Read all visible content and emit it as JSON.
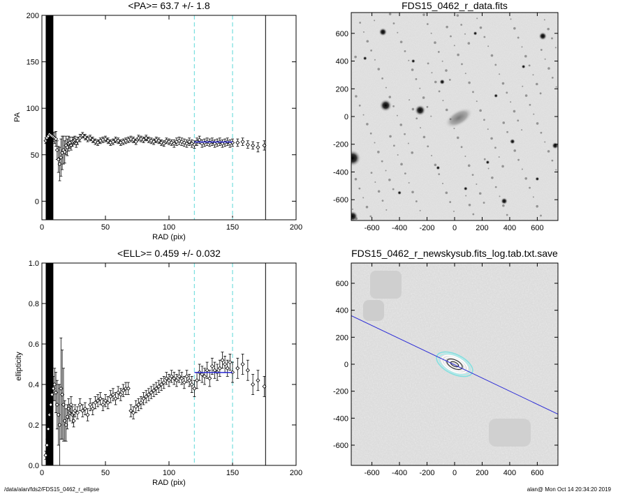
{
  "footer": {
    "left": "/data/alan/fds2/FDS15_0462_r_ellipse",
    "right": "alan@  Mon Oct 14 20:34:20 2019"
  },
  "colors": {
    "axis": "#000000",
    "data": "#000000",
    "fit_line": "#2b2bd6",
    "cyan_dash": "#7fe0e0",
    "image_bg": "#dcdcdc",
    "residual_bg": "#d9d9d9"
  },
  "chart_data": [
    {
      "type": "scatter",
      "title": "<PA>=  63.7 +/-   1.8",
      "xlabel": "RAD (pix)",
      "ylabel": "PA",
      "xlim": [
        0,
        200
      ],
      "ylim": [
        -20,
        200
      ],
      "xticks": [
        0,
        50,
        100,
        150,
        200
      ],
      "yticks": [
        0,
        50,
        100,
        150,
        200
      ],
      "vlines_dashed": [
        120,
        150
      ],
      "vline_solid": 176,
      "fit_segment": {
        "x": [
          120,
          150
        ],
        "y": 63.7
      },
      "series": [
        {
          "x": [
            3,
            4,
            5,
            6,
            7,
            8,
            9,
            10,
            11,
            12,
            13,
            14,
            15,
            16,
            17,
            18,
            19,
            20,
            21,
            22,
            23,
            24,
            25,
            26,
            27,
            28,
            30,
            32,
            34,
            36,
            38,
            40,
            42,
            44,
            46,
            48,
            50,
            52,
            54,
            56,
            58,
            60,
            62,
            64,
            66,
            68,
            70,
            72,
            74,
            76,
            78,
            80,
            82,
            84,
            86,
            88,
            90,
            92,
            94,
            96,
            98,
            100,
            102,
            104,
            106,
            108,
            110,
            112,
            114,
            116,
            118,
            120,
            122,
            124,
            126,
            128,
            130,
            132,
            134,
            136,
            138,
            140,
            142,
            144,
            146,
            148,
            150,
            154,
            158,
            162,
            166,
            170,
            175
          ],
          "y": [
            65,
            68,
            70,
            72,
            71,
            70,
            69,
            68,
            67,
            55,
            45,
            40,
            47,
            52,
            55,
            53,
            60,
            58,
            62,
            63,
            60,
            64,
            65,
            66,
            62,
            65,
            68,
            71,
            69,
            67,
            68,
            66,
            64,
            63,
            65,
            66,
            67,
            65,
            63,
            64,
            66,
            65,
            63,
            64,
            65,
            66,
            67,
            66,
            64,
            68,
            67,
            66,
            68,
            66,
            65,
            64,
            66,
            65,
            63,
            62,
            65,
            64,
            63,
            62,
            64,
            65,
            64,
            63,
            62,
            64,
            62,
            61,
            64,
            66,
            62,
            63,
            64,
            63,
            64,
            62,
            63,
            64,
            62,
            63,
            64,
            62,
            63,
            63,
            64,
            61,
            60,
            58,
            60
          ],
          "err": [
            3,
            3,
            3,
            4,
            4,
            5,
            5,
            6,
            8,
            10,
            14,
            18,
            20,
            18,
            15,
            12,
            10,
            9,
            8,
            6,
            5,
            5,
            4,
            4,
            4,
            4,
            4,
            3,
            3,
            3,
            3,
            3,
            3,
            3,
            3,
            3,
            3,
            3,
            3,
            3,
            3,
            3,
            3,
            3,
            3,
            3,
            3,
            3,
            3,
            3,
            3,
            3,
            3,
            3,
            3,
            3,
            3,
            3,
            3,
            3,
            3,
            3,
            3,
            4,
            4,
            4,
            4,
            4,
            4,
            4,
            4,
            4,
            4,
            4,
            4,
            4,
            4,
            4,
            4,
            4,
            4,
            4,
            4,
            4,
            4,
            4,
            4,
            4,
            4,
            4,
            4,
            5,
            5
          ]
        }
      ]
    },
    {
      "type": "heatmap",
      "title": "FDS15_0462_r_data.fits",
      "xlim": [
        -750,
        750
      ],
      "ylim": [
        -750,
        750
      ],
      "xticks": [
        -600,
        -400,
        -200,
        0,
        200,
        400,
        600
      ],
      "yticks": [
        -600,
        -400,
        -200,
        0,
        200,
        400,
        600
      ],
      "grid": false
    },
    {
      "type": "scatter",
      "title": "<ELL>= 0.459 +/-  0.032",
      "xlabel": "RAD (pix)",
      "ylabel": "ellipticity",
      "xlim": [
        0,
        200
      ],
      "ylim": [
        0,
        1
      ],
      "xticks": [
        0,
        50,
        100,
        150,
        200
      ],
      "yticks": [
        0.0,
        0.2,
        0.4,
        0.6,
        0.8,
        1.0
      ],
      "vlines_dashed": [
        120,
        150
      ],
      "vline_solid": 176,
      "fit_segment": {
        "x": [
          120,
          150
        ],
        "y": 0.459
      },
      "series": [
        {
          "x": [
            3,
            4,
            5,
            6,
            7,
            8,
            9,
            10,
            11,
            12,
            13,
            14,
            15,
            16,
            17,
            18,
            19,
            20,
            21,
            22,
            23,
            24,
            25,
            26,
            28,
            30,
            32,
            34,
            36,
            38,
            40,
            42,
            44,
            46,
            48,
            50,
            52,
            54,
            56,
            58,
            60,
            62,
            64,
            66,
            68,
            70,
            72,
            74,
            76,
            78,
            80,
            82,
            84,
            86,
            88,
            90,
            92,
            94,
            96,
            98,
            100,
            102,
            104,
            106,
            108,
            110,
            112,
            114,
            116,
            118,
            120,
            122,
            124,
            126,
            128,
            130,
            132,
            134,
            136,
            138,
            140,
            142,
            144,
            146,
            148,
            150,
            154,
            158,
            162,
            166,
            170,
            175
          ],
          "y": [
            0.05,
            0.1,
            0.18,
            0.25,
            0.3,
            0.35,
            0.38,
            0.4,
            0.36,
            0.3,
            0.25,
            0.2,
            0.38,
            0.35,
            0.3,
            0.22,
            0.2,
            0.24,
            0.28,
            0.26,
            0.3,
            0.25,
            0.22,
            0.27,
            0.26,
            0.3,
            0.27,
            0.28,
            0.25,
            0.3,
            0.28,
            0.31,
            0.32,
            0.33,
            0.3,
            0.32,
            0.31,
            0.34,
            0.35,
            0.33,
            0.36,
            0.35,
            0.37,
            0.38,
            0.38,
            0.27,
            0.26,
            0.29,
            0.3,
            0.31,
            0.33,
            0.34,
            0.35,
            0.36,
            0.37,
            0.38,
            0.39,
            0.4,
            0.41,
            0.43,
            0.42,
            0.44,
            0.43,
            0.42,
            0.44,
            0.43,
            0.41,
            0.44,
            0.42,
            0.4,
            0.38,
            0.42,
            0.46,
            0.45,
            0.44,
            0.47,
            0.43,
            0.49,
            0.47,
            0.46,
            0.48,
            0.52,
            0.5,
            0.48,
            0.51,
            0.46,
            0.48,
            0.5,
            0.47,
            0.4,
            0.42,
            0.39
          ],
          "err": [
            0.02,
            0.03,
            0.04,
            0.05,
            0.05,
            0.06,
            0.06,
            0.08,
            0.1,
            0.12,
            0.15,
            0.2,
            0.25,
            0.22,
            0.18,
            0.1,
            0.08,
            0.06,
            0.05,
            0.04,
            0.04,
            0.04,
            0.03,
            0.03,
            0.03,
            0.03,
            0.03,
            0.03,
            0.03,
            0.03,
            0.03,
            0.03,
            0.03,
            0.03,
            0.03,
            0.03,
            0.03,
            0.03,
            0.03,
            0.03,
            0.03,
            0.03,
            0.03,
            0.03,
            0.03,
            0.03,
            0.03,
            0.03,
            0.03,
            0.03,
            0.03,
            0.03,
            0.03,
            0.03,
            0.03,
            0.03,
            0.03,
            0.03,
            0.03,
            0.03,
            0.03,
            0.03,
            0.03,
            0.03,
            0.03,
            0.03,
            0.03,
            0.03,
            0.03,
            0.04,
            0.04,
            0.04,
            0.04,
            0.04,
            0.04,
            0.04,
            0.04,
            0.04,
            0.04,
            0.04,
            0.04,
            0.04,
            0.04,
            0.04,
            0.04,
            0.05,
            0.05,
            0.05,
            0.05,
            0.05,
            0.05,
            0.05
          ]
        }
      ]
    },
    {
      "type": "heatmap",
      "title": "FDS15_0462_r_newskysub.fits_log.tab.txt.save",
      "xlim": [
        -750,
        750
      ],
      "ylim": [
        -750,
        750
      ],
      "xticks": [
        -600,
        -400,
        -200,
        0,
        200,
        400,
        600
      ],
      "yticks": [
        -600,
        -400,
        -200,
        0,
        200,
        400,
        600
      ],
      "pa_line": {
        "x": [
          -750,
          750
        ],
        "y": [
          360,
          -370
        ]
      },
      "grid": false
    }
  ]
}
